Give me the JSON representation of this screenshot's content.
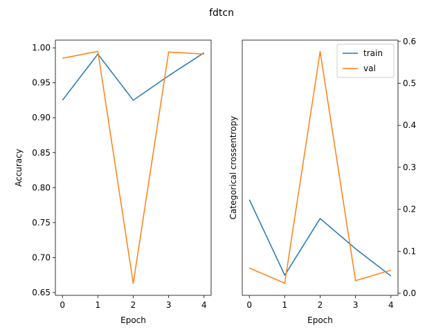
{
  "figure": {
    "suptitle": "fdtcn"
  },
  "colors": {
    "train": "#1f77b4",
    "val": "#ff7f0e"
  },
  "chart_data": [
    {
      "type": "line",
      "xlabel": "Epoch",
      "ylabel": "Accuracy",
      "x": [
        0,
        1,
        2,
        3,
        4
      ],
      "xlim": [
        -0.2,
        4.2
      ],
      "ylim": [
        0.646,
        1.011
      ],
      "xticks": [
        0,
        1,
        2,
        3,
        4
      ],
      "yticks": [
        0.65,
        0.7,
        0.75,
        0.8,
        0.85,
        0.9,
        0.95,
        1.0
      ],
      "ytick_labels": [
        "0.65",
        "0.70",
        "0.75",
        "0.80",
        "0.85",
        "0.90",
        "0.95",
        "1.00"
      ],
      "y_axis_side": "left",
      "grid": false,
      "series": [
        {
          "key": "train",
          "values": [
            0.925,
            0.991,
            0.925,
            0.96,
            0.993
          ]
        },
        {
          "key": "val",
          "values": [
            0.985,
            0.995,
            0.663,
            0.994,
            0.991
          ]
        }
      ]
    },
    {
      "type": "line",
      "xlabel": "Epoch",
      "ylabel": "Categorical crossentropy",
      "x": [
        0,
        1,
        2,
        3,
        4
      ],
      "xlim": [
        -0.2,
        4.2
      ],
      "ylim": [
        -0.005,
        0.603
      ],
      "xticks": [
        0,
        1,
        2,
        3,
        4
      ],
      "yticks": [
        0.0,
        0.1,
        0.2,
        0.3,
        0.4,
        0.5,
        0.6
      ],
      "ytick_labels": [
        "0.0",
        "0.1",
        "0.2",
        "0.3",
        "0.4",
        "0.5",
        "0.6"
      ],
      "y_axis_side": "right",
      "grid": false,
      "legend": {
        "location": "upper right",
        "entries": [
          {
            "key": "train",
            "label": "train"
          },
          {
            "key": "val",
            "label": "val"
          }
        ]
      },
      "series": [
        {
          "key": "train",
          "name": "train",
          "values": [
            0.223,
            0.043,
            0.178,
            0.106,
            0.041
          ]
        },
        {
          "key": "val",
          "name": "val",
          "values": [
            0.06,
            0.024,
            0.576,
            0.03,
            0.055
          ]
        }
      ]
    }
  ]
}
